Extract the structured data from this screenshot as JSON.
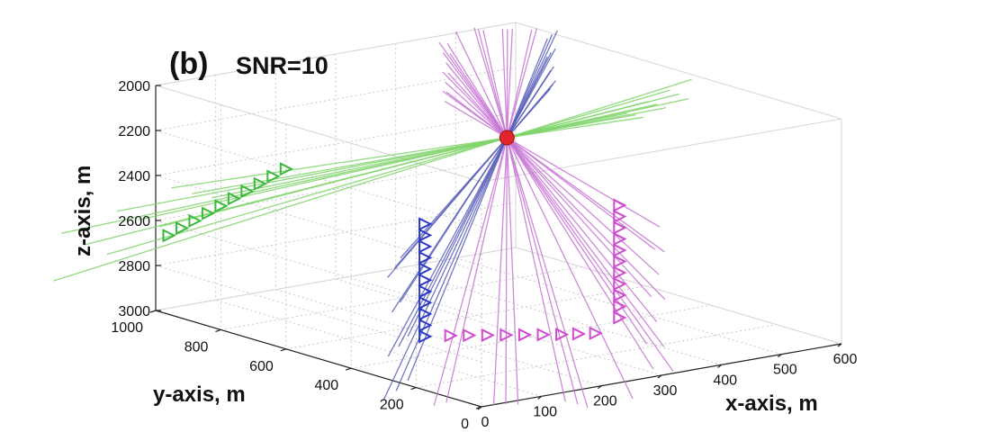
{
  "chart_data": {
    "type": "scatter",
    "panel_label": "(b)",
    "title": "SNR=10",
    "xlabel": "x-axis, m",
    "ylabel": "y-axis, m",
    "zlabel": "z-axis, m",
    "xlim": [
      0,
      600
    ],
    "ylim": [
      0,
      1000
    ],
    "zlim": [
      2000,
      3000
    ],
    "z_reversed": true,
    "grid": true,
    "x_ticks": [
      "0",
      "100",
      "200",
      "300",
      "400",
      "500",
      "600"
    ],
    "y_ticks": [
      "0",
      "200",
      "400",
      "600",
      "800",
      "1000"
    ],
    "z_ticks": [
      "2000",
      "2200",
      "2400",
      "2600",
      "2800",
      "3000"
    ],
    "source": {
      "x": 390,
      "y": 640,
      "z": 2260,
      "color": "#e0262a"
    },
    "series": [
      {
        "color": "#3db83d",
        "ray_color": "#7fd36a",
        "marker": "triangle-right",
        "receivers": [
          {
            "x": 0,
            "y": 600,
            "z": 2200
          },
          {
            "x": 0,
            "y": 640,
            "z": 2250
          },
          {
            "x": 0,
            "y": 680,
            "z": 2300
          },
          {
            "x": 0,
            "y": 720,
            "z": 2350
          },
          {
            "x": 0,
            "y": 760,
            "z": 2400
          },
          {
            "x": 0,
            "y": 800,
            "z": 2450
          },
          {
            "x": 0,
            "y": 840,
            "z": 2500
          },
          {
            "x": 0,
            "y": 880,
            "z": 2550
          },
          {
            "x": 0,
            "y": 920,
            "z": 2600
          },
          {
            "x": 0,
            "y": 960,
            "z": 2650
          }
        ]
      },
      {
        "color": "#2a38c8",
        "ray_color": "#5a5fb8",
        "marker": "triangle-right",
        "receivers": [
          {
            "x": 150,
            "y": 450,
            "z": 2450
          },
          {
            "x": 150,
            "y": 450,
            "z": 2500
          },
          {
            "x": 150,
            "y": 450,
            "z": 2550
          },
          {
            "x": 150,
            "y": 450,
            "z": 2600
          },
          {
            "x": 150,
            "y": 450,
            "z": 2650
          },
          {
            "x": 150,
            "y": 450,
            "z": 2700
          },
          {
            "x": 150,
            "y": 450,
            "z": 2750
          },
          {
            "x": 150,
            "y": 450,
            "z": 2800
          },
          {
            "x": 150,
            "y": 450,
            "z": 2850
          },
          {
            "x": 150,
            "y": 450,
            "z": 2900
          },
          {
            "x": 150,
            "y": 450,
            "z": 2950
          }
        ]
      },
      {
        "color": "#d04ccf",
        "ray_color": "#c774d4",
        "marker": "triangle-right",
        "receivers": [
          {
            "x": 420,
            "y": 350,
            "z": 2450
          },
          {
            "x": 420,
            "y": 350,
            "z": 2500
          },
          {
            "x": 420,
            "y": 350,
            "z": 2550
          },
          {
            "x": 420,
            "y": 350,
            "z": 2600
          },
          {
            "x": 420,
            "y": 350,
            "z": 2650
          },
          {
            "x": 420,
            "y": 350,
            "z": 2700
          },
          {
            "x": 420,
            "y": 350,
            "z": 2750
          },
          {
            "x": 420,
            "y": 350,
            "z": 2800
          },
          {
            "x": 420,
            "y": 350,
            "z": 2850
          },
          {
            "x": 420,
            "y": 350,
            "z": 2900
          },
          {
            "x": 420,
            "y": 350,
            "z": 2950
          },
          {
            "x": 220,
            "y": 500,
            "z": 3000
          },
          {
            "x": 240,
            "y": 480,
            "z": 3000
          },
          {
            "x": 260,
            "y": 460,
            "z": 3000
          },
          {
            "x": 280,
            "y": 440,
            "z": 3000
          },
          {
            "x": 300,
            "y": 420,
            "z": 3000
          },
          {
            "x": 320,
            "y": 400,
            "z": 3000
          },
          {
            "x": 340,
            "y": 380,
            "z": 3000
          },
          {
            "x": 360,
            "y": 365,
            "z": 3000
          },
          {
            "x": 380,
            "y": 350,
            "z": 3000
          }
        ]
      }
    ]
  }
}
